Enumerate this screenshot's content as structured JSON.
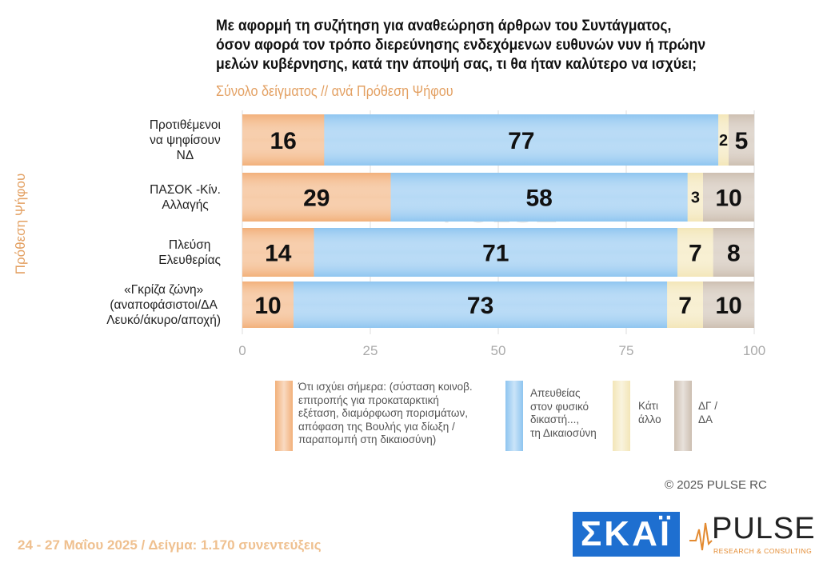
{
  "title_lines": [
    "Με αφορμή τη συζήτηση για αναθεώρηση άρθρων του Συντάγματος,",
    "όσον αφορά τον τρόπο διερεύνησης ενδεχόμενων ευθυνών νυν ή πρώην",
    "μελών κυβέρνησης, κατά την άποψή σας, τι θα ήταν καλύτερο να ισχύει;"
  ],
  "subtitle": "Σύνολο δείγματος // ανά Πρόθεση Ψήφου",
  "copyright": "©  2025  PULSE RC",
  "footer": "24 - 27 Μαΐου 2025  /  Δείγμα:  1.170 συνεντεύξεις",
  "logos": {
    "skat": "ΣΚΑΪ",
    "pulse": "PULSE",
    "pulse_sub": "RESEARCH & CONSULTING",
    "watermark": "PULSE"
  },
  "chart_data": {
    "type": "bar",
    "orientation": "horizontal",
    "stacked": true,
    "ylabel": "Πρόθεση Ψήφου",
    "categories": [
      [
        "Προτιθέμενοι",
        "να ψηφίσουν",
        "ΝΔ"
      ],
      [
        "ΠΑΣΟΚ -Κίν.",
        "Αλλαγής"
      ],
      [
        "Πλεύση",
        "Ελευθερίας"
      ],
      [
        "«Γκρίζα ζώνη»",
        "(αναποφάσιστοι/ΔΑ",
        "Λευκό/άκυρο/αποχή)"
      ]
    ],
    "xlim": [
      0,
      100
    ],
    "xticks": [
      "0",
      "25",
      "50",
      "75",
      "100"
    ],
    "legend_position": "bottom",
    "series": [
      {
        "name": "Ότι ισχύει σήμερα: (σύσταση κοινοβ. επιτροπής για προκαταρκτική εξέταση, διαμόρφωση πορισμάτων, απόφαση της Βουλής για δίωξη / παραπομπή στη δικαιοσύνη)",
        "legend_lines": [
          "Ότι ισχύει σήμερα: (σύσταση κοινοβ.",
          "επιτροπής για προκαταρκτική",
          "εξέταση, διαμόρφωση πορισμάτων,",
          "απόφαση της Βουλής για δίωξη /",
          "παραπομπή στη δικαιοσύνη)"
        ],
        "color": "#f2b07a",
        "values": [
          16,
          29,
          14,
          10
        ]
      },
      {
        "name": "Απευθείας στον φυσικό δικαστή..., τη Δικαιοσύνη",
        "legend_lines": [
          "Απευθείας",
          "στον φυσικό",
          "δικαστή...,",
          "τη Δικαιοσύνη"
        ],
        "color": "#8ec5f0",
        "values": [
          77,
          58,
          71,
          73
        ]
      },
      {
        "name": "Κάτι άλλο",
        "legend_lines": [
          "Κάτι",
          "άλλο"
        ],
        "color": "#f3e6b8",
        "values": [
          2,
          3,
          7,
          7
        ]
      },
      {
        "name": "ΔΓ / ΔΑ",
        "legend_lines": [
          "ΔΓ /",
          "ΔΑ"
        ],
        "color": "#cdbfb1",
        "values": [
          5,
          10,
          8,
          10
        ]
      }
    ]
  }
}
